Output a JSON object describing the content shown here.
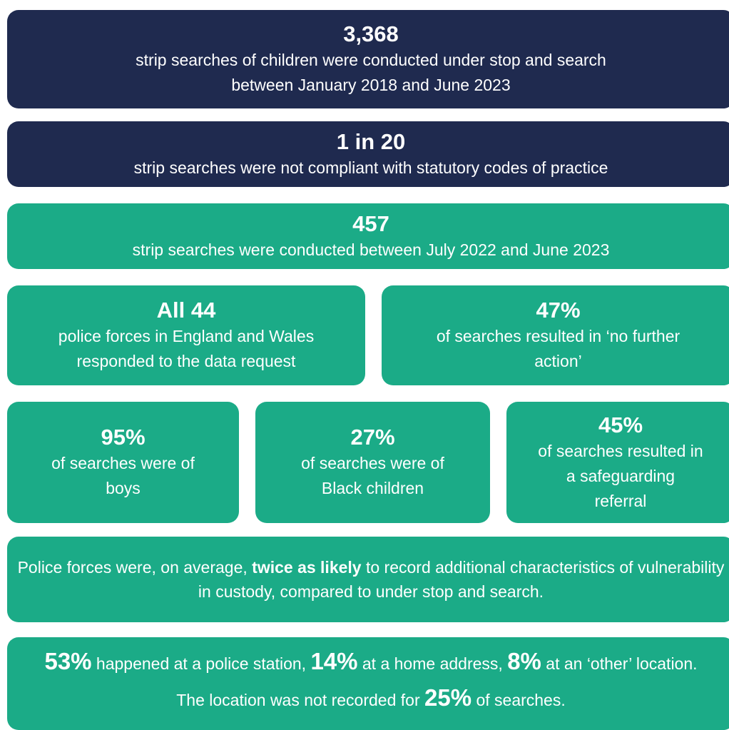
{
  "stats": [
    {
      "headline": "3,368",
      "lines": [
        "strip searches of children were conducted under stop and search",
        "between January 2018 and June 2023"
      ]
    },
    {
      "headline": "1 in 20",
      "lines": [
        "strip searches were not compliant with statutory codes of practice"
      ]
    },
    {
      "headline": "457",
      "lines": [
        "strip searches were conducted between July 2022 and June 2023"
      ]
    },
    {
      "headline": "All 44",
      "lines": [
        "police forces in England and Wales",
        "responded to the data request"
      ]
    },
    {
      "headline": "47%",
      "lines": [
        "of searches resulted in ‘no further",
        "action’"
      ]
    },
    {
      "headline": "95%",
      "lines": [
        "of searches were of",
        "boys"
      ]
    },
    {
      "headline": "27%",
      "lines": [
        "of searches were of",
        "Black children"
      ]
    },
    {
      "headline": "45%",
      "lines": [
        "of searches resulted in",
        "a safeguarding",
        "referral"
      ]
    }
  ],
  "note": {
    "before": "Police forces were, on average, ",
    "emphasis": "twice as likely",
    "after": " to record additional characteristics of vulnerability in custody, compared to under stop and search."
  },
  "locations": {
    "parts": [
      "53%",
      " happened at a police station, ",
      "14%",
      " at a home address, ",
      "8%",
      " at an ‘other’ location. The location was not recorded for ",
      "25%",
      " of searches."
    ]
  }
}
